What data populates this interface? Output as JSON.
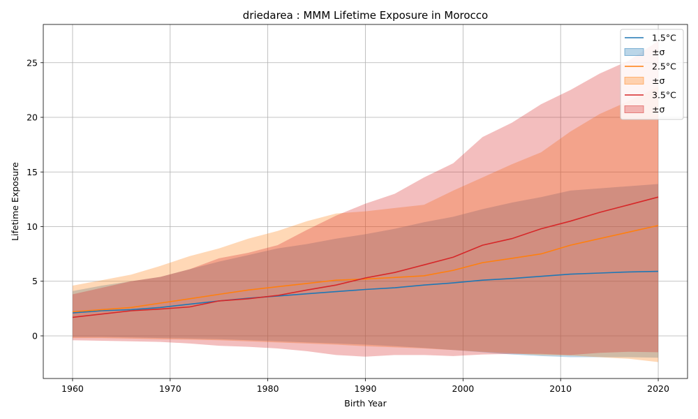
{
  "chart_data": {
    "type": "line",
    "title": "driedarea : MMM Lifetime Exposure in Morocco",
    "xlabel": "Birth Year",
    "ylabel": "Lifetime Exposure",
    "xlim": [
      1957,
      2023
    ],
    "ylim": [
      -3.9,
      28.5
    ],
    "xticks": [
      1960,
      1970,
      1980,
      1990,
      2000,
      2010,
      2020
    ],
    "yticks": [
      0,
      5,
      10,
      15,
      20,
      25
    ],
    "grid": true,
    "legend_position": "top-right",
    "x": [
      1960,
      1963,
      1966,
      1969,
      1972,
      1975,
      1978,
      1981,
      1984,
      1987,
      1990,
      1993,
      1996,
      1999,
      2002,
      2005,
      2008,
      2011,
      2014,
      2017,
      2020
    ],
    "series": [
      {
        "name": "1.5°C",
        "band_label": "±σ",
        "color": "#1f77b4",
        "band_color": "#a6c7e0",
        "mean": [
          2.1,
          2.3,
          2.4,
          2.6,
          2.9,
          3.2,
          3.45,
          3.65,
          3.85,
          4.05,
          4.25,
          4.4,
          4.65,
          4.85,
          5.1,
          5.25,
          5.45,
          5.65,
          5.75,
          5.85,
          5.9
        ],
        "upper": [
          4.1,
          4.6,
          5.0,
          5.4,
          6.1,
          6.8,
          7.4,
          8.0,
          8.4,
          8.9,
          9.3,
          9.8,
          10.4,
          10.9,
          11.6,
          12.2,
          12.7,
          13.3,
          13.5,
          13.7,
          13.9
        ],
        "lower": [
          -0.1,
          -0.1,
          -0.15,
          -0.2,
          -0.25,
          -0.3,
          -0.4,
          -0.5,
          -0.6,
          -0.7,
          -0.8,
          -0.95,
          -1.1,
          -1.3,
          -1.5,
          -1.7,
          -1.85,
          -1.95,
          -1.95,
          -1.95,
          -2.0
        ]
      },
      {
        "name": "2.5°C",
        "band_label": "±σ",
        "color": "#ff7f0e",
        "band_color": "#ffbe86",
        "mean": [
          2.2,
          2.4,
          2.6,
          3.0,
          3.4,
          3.8,
          4.2,
          4.5,
          4.8,
          5.1,
          5.2,
          5.35,
          5.5,
          6.0,
          6.7,
          7.1,
          7.5,
          8.3,
          8.9,
          9.5,
          10.1
        ],
        "upper": [
          4.6,
          5.1,
          5.6,
          6.4,
          7.3,
          8.0,
          8.9,
          9.6,
          10.5,
          11.2,
          11.4,
          11.7,
          12.0,
          13.3,
          14.5,
          15.7,
          16.8,
          18.7,
          20.3,
          21.5,
          22.8
        ],
        "lower": [
          -0.2,
          -0.2,
          -0.25,
          -0.3,
          -0.35,
          -0.4,
          -0.5,
          -0.6,
          -0.7,
          -0.8,
          -0.95,
          -1.05,
          -1.15,
          -1.3,
          -1.45,
          -1.6,
          -1.75,
          -1.8,
          -1.95,
          -2.1,
          -2.4
        ]
      },
      {
        "name": "3.5°C",
        "band_label": "±σ",
        "color": "#d62728",
        "band_color": "#e88e8f",
        "mean": [
          1.7,
          2.0,
          2.3,
          2.45,
          2.65,
          3.2,
          3.4,
          3.7,
          4.2,
          4.65,
          5.3,
          5.8,
          6.5,
          7.2,
          8.3,
          8.9,
          9.8,
          10.5,
          11.3,
          12.0,
          12.7
        ],
        "upper": [
          3.8,
          4.4,
          5.0,
          5.4,
          6.1,
          7.1,
          7.6,
          8.3,
          9.7,
          11.0,
          12.1,
          13.0,
          14.5,
          15.8,
          18.2,
          19.5,
          21.2,
          22.5,
          24.0,
          25.2,
          27.0
        ],
        "lower": [
          -0.4,
          -0.45,
          -0.5,
          -0.55,
          -0.7,
          -0.9,
          -1.0,
          -1.15,
          -1.4,
          -1.75,
          -1.9,
          -1.75,
          -1.75,
          -1.85,
          -1.7,
          -1.65,
          -1.65,
          -1.75,
          -1.55,
          -1.45,
          -1.5
        ]
      }
    ]
  }
}
